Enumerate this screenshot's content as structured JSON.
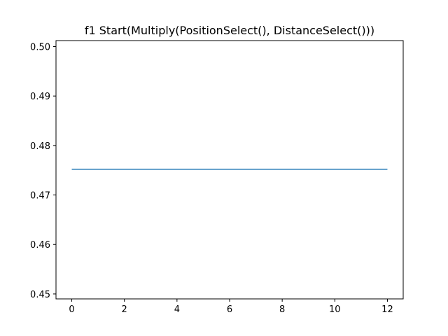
{
  "chart_data": {
    "type": "line",
    "title": "f1 Start(Multiply(PositionSelect(), DistanceSelect()))",
    "xlabel": "",
    "ylabel": "",
    "xlim": [
      -0.6,
      12.6
    ],
    "ylim": [
      0.449,
      0.5012
    ],
    "xticks": [
      0,
      2,
      4,
      6,
      8,
      10,
      12
    ],
    "yticks": [
      0.45,
      0.46,
      0.47,
      0.48,
      0.49,
      0.5
    ],
    "ytick_labels": [
      "0.45",
      "0.46",
      "0.47",
      "0.48",
      "0.49",
      "0.50"
    ],
    "grid": false,
    "series": [
      {
        "color": "#1f77b4",
        "x": [
          0,
          1,
          2,
          3,
          4,
          5,
          6,
          7,
          8,
          9,
          10,
          11,
          12
        ],
        "y": [
          0.4752,
          0.4752,
          0.4752,
          0.4752,
          0.4752,
          0.4752,
          0.4752,
          0.4752,
          0.4752,
          0.4752,
          0.4752,
          0.4752,
          0.4752
        ]
      }
    ]
  }
}
